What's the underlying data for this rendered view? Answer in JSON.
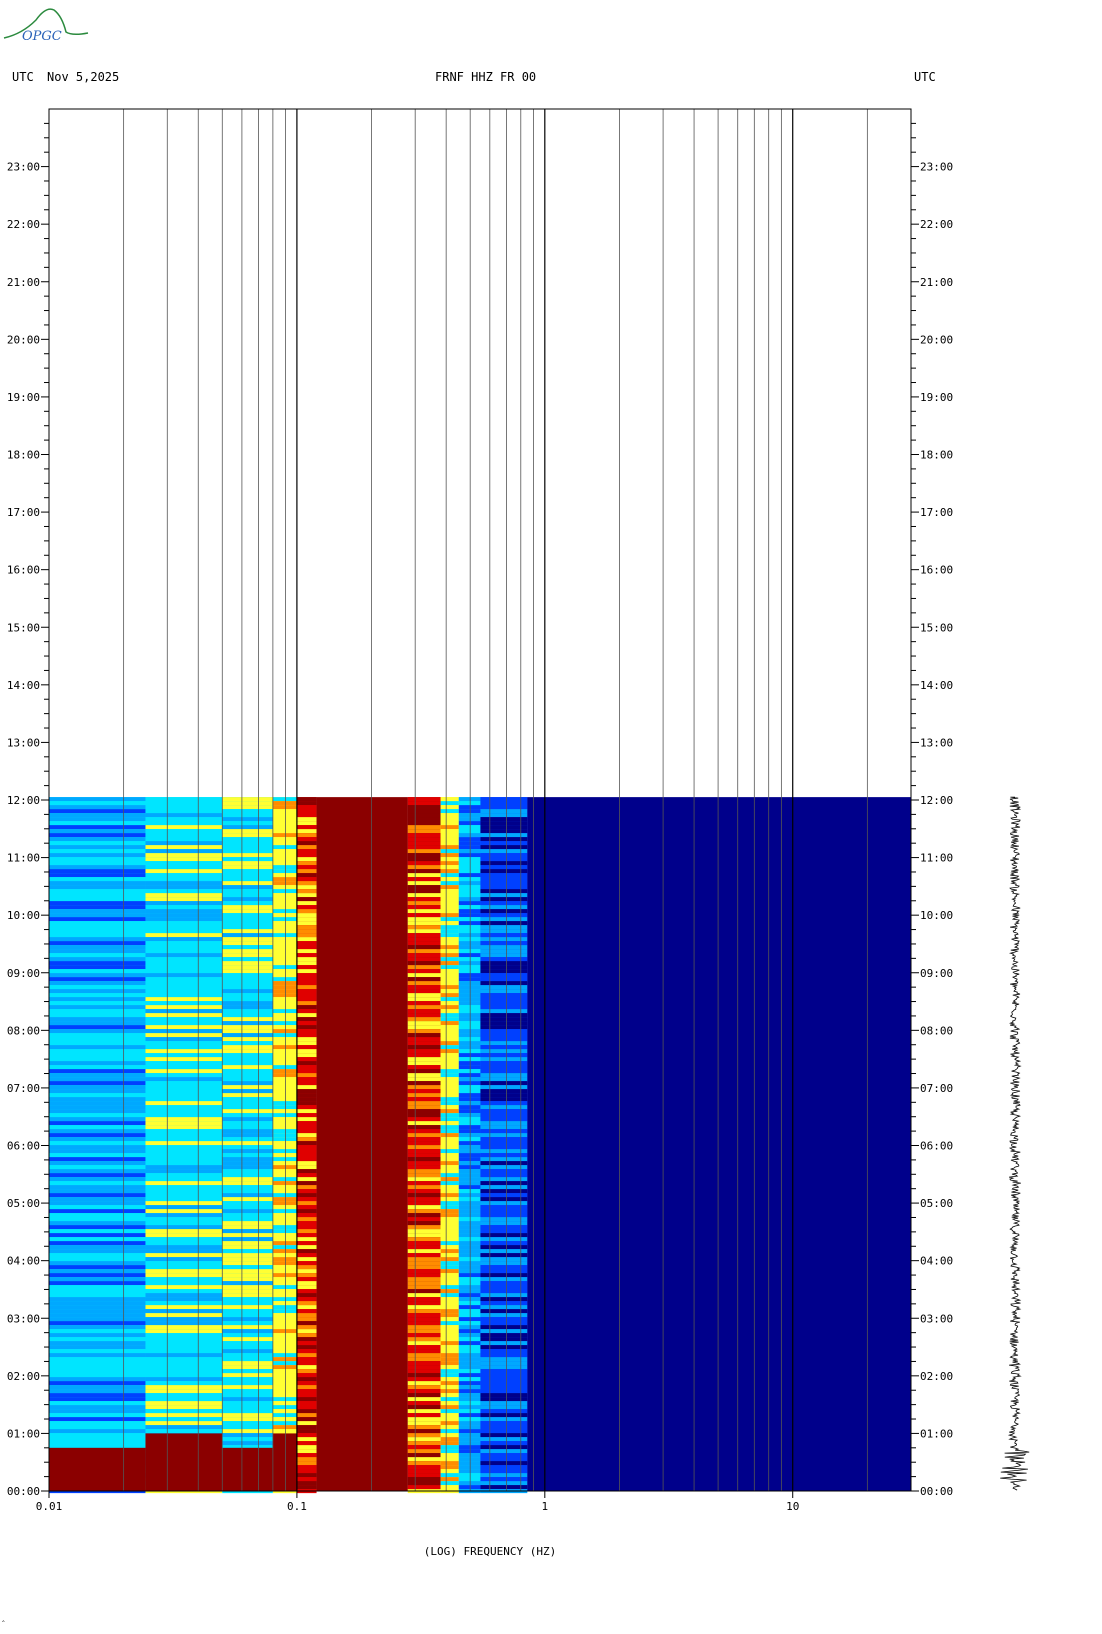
{
  "header": {
    "logo_text": "OPGC",
    "left_label": "UTC",
    "date": "Nov 5,2025",
    "station": "FRNF HHZ FR 00",
    "right_label": "UTC"
  },
  "colors": {
    "background": "#ffffff",
    "deep_red": "#8b0000",
    "red": "#e00000",
    "orange": "#ff8c00",
    "yellow": "#ffff33",
    "cyan": "#00e5ff",
    "light_blue": "#00a8ff",
    "blue": "#0040ff",
    "navy": "#00008b"
  },
  "corner_mark": "‸",
  "chart_data": {
    "type": "heatmap",
    "title": "FRNF HHZ FR 00",
    "xlabel": "(LOG) FREQUENCY (HZ)",
    "ylabel": "UTC",
    "x_scale": "log",
    "xlim": [
      0.01,
      30
    ],
    "x_tick_labels": [
      "0.01",
      "0.1",
      "1",
      "10"
    ],
    "x_tick_values": [
      0.01,
      0.1,
      1,
      10
    ],
    "ylim_hours": [
      0,
      24
    ],
    "y_tick_labels": [
      "00:00",
      "01:00",
      "02:00",
      "03:00",
      "04:00",
      "05:00",
      "06:00",
      "07:00",
      "08:00",
      "09:00",
      "10:00",
      "11:00",
      "12:00",
      "13:00",
      "14:00",
      "15:00",
      "16:00",
      "17:00",
      "18:00",
      "19:00",
      "20:00",
      "21:00",
      "22:00",
      "23:00"
    ],
    "data_end_hour": 12.05,
    "gridlines": true,
    "frequency_bands": [
      {
        "f_min": 0.01,
        "f_max": 0.0245,
        "dominant": "cyan-blue",
        "low_hours_color": "deep_red"
      },
      {
        "f_min": 0.0245,
        "f_max": 0.05,
        "dominant": "cyan-yellow",
        "low_hours_color": "deep_red"
      },
      {
        "f_min": 0.05,
        "f_max": 0.08,
        "dominant": "yellow-cyan",
        "low_hours_color": "deep_red"
      },
      {
        "f_min": 0.08,
        "f_max": 0.1,
        "dominant": "yellow-orange",
        "low_hours_color": "deep_red"
      },
      {
        "f_min": 0.1,
        "f_max": 0.12,
        "dominant": "red-yellow"
      },
      {
        "f_min": 0.12,
        "f_max": 0.28,
        "dominant": "deep_red"
      },
      {
        "f_min": 0.28,
        "f_max": 0.38,
        "dominant": "red-orange"
      },
      {
        "f_min": 0.38,
        "f_max": 0.45,
        "dominant": "yellow"
      },
      {
        "f_min": 0.45,
        "f_max": 0.55,
        "dominant": "cyan-light_blue"
      },
      {
        "f_min": 0.55,
        "f_max": 0.85,
        "dominant": "blue"
      },
      {
        "f_min": 0.85,
        "f_max": 30,
        "dominant": "navy"
      }
    ]
  }
}
